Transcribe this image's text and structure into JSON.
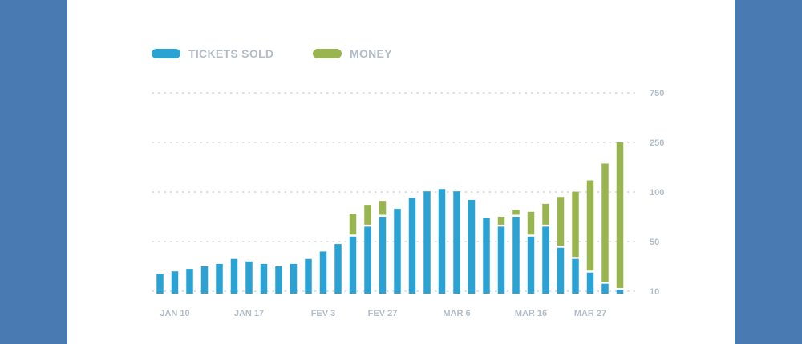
{
  "colors": {
    "background": "#4a7ab2",
    "card": "#ffffff",
    "tickets": "#2aa3d4",
    "money": "#99b550",
    "grid": "#d0d7de",
    "label": "#b3bdc8"
  },
  "chart_data": {
    "type": "bar",
    "stacked": true,
    "legend_position": "top-left",
    "grid": true,
    "y_tick_labels": [
      "10",
      "50",
      "100",
      "250",
      "750"
    ],
    "y_axis_side": "right",
    "x_tick_labels": [
      {
        "label": "JAN 10",
        "index": 1
      },
      {
        "label": "JAN 17",
        "index": 6
      },
      {
        "label": "FEV 3",
        "index": 11
      },
      {
        "label": "FEV 27",
        "index": 15
      },
      {
        "label": "MAR 6",
        "index": 20
      },
      {
        "label": "MAR 16",
        "index": 25
      },
      {
        "label": "MAR 27",
        "index": 29
      }
    ],
    "series": [
      {
        "name": "TICKETS SOLD",
        "color": "#2aa3d4",
        "values": [
          24,
          26,
          28,
          30,
          32,
          36,
          34,
          32,
          30,
          32,
          36,
          42,
          48,
          55,
          65,
          75,
          83,
          94,
          102,
          109,
          102,
          92,
          74,
          65,
          75,
          55,
          65,
          45,
          36,
          25,
          16,
          11
        ]
      },
      {
        "name": "MONEY",
        "color": "#99b550",
        "values": [
          0,
          0,
          0,
          0,
          0,
          0,
          0,
          0,
          0,
          0,
          0,
          0,
          0,
          23,
          22,
          16,
          0,
          0,
          0,
          0,
          0,
          0,
          0,
          10,
          7,
          25,
          23,
          50,
          65,
          110,
          170,
          240
        ]
      }
    ]
  }
}
